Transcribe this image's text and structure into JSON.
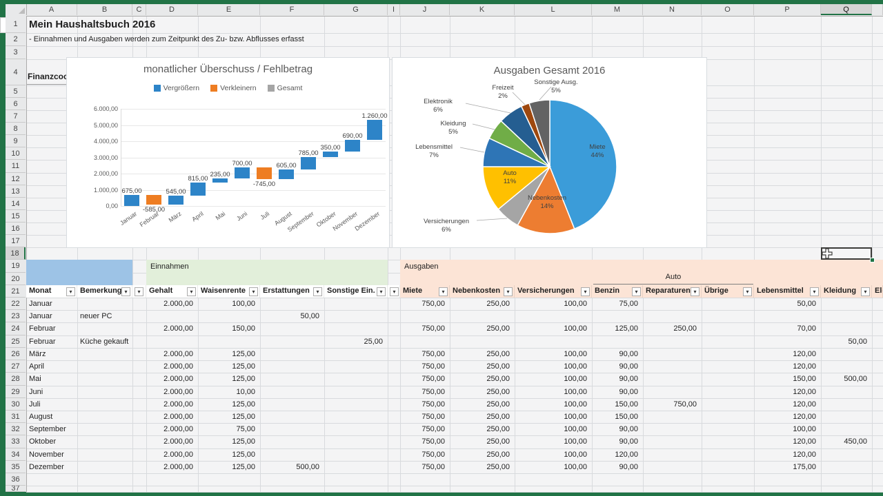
{
  "colors": {
    "frame": "#217346",
    "section_blue": "#9DC3E6",
    "section_green": "#E2EFDA",
    "section_peach": "#FCE4D6",
    "increase": "#2D84C8",
    "decrease": "#EE7D22",
    "total": "#A5A5A5"
  },
  "sheet": {
    "title": "Mein Haushaltsbuch 2016",
    "subtitle": "- Einnahmen und Ausgaben werden zum Zeitpunkt des Zu- bzw. Abflusses erfasst",
    "finanzcockpit": "Finanzcockpi",
    "column_letters": [
      "A",
      "B",
      "C",
      "D",
      "E",
      "F",
      "G",
      "I",
      "J",
      "K",
      "L",
      "M",
      "N",
      "O",
      "P",
      "Q"
    ],
    "selected_column": "Q",
    "selected_row": 18,
    "row_first": 1,
    "row_last": 37
  },
  "sections": {
    "einnahmen": "Einnahmen",
    "ausgaben": "Ausgaben",
    "auto_group": "Auto"
  },
  "table": {
    "headers": [
      "Monat",
      "Bemerkung",
      "Gehalt",
      "Waisenrente",
      "Erstattungen",
      "Sonstige Ein.",
      "Miete",
      "Nebenkosten",
      "Versicherungen",
      "Benzin",
      "Reparaturen",
      "Übrige",
      "Lebensmittel",
      "Kleidung"
    ],
    "partial_last_header": "Ele",
    "rows": [
      {
        "row": 22,
        "cells": [
          "Januar",
          "",
          "2.000,00",
          "100,00",
          "",
          "",
          "750,00",
          "250,00",
          "100,00",
          "75,00",
          "",
          "",
          "50,00",
          ""
        ]
      },
      {
        "row": 23,
        "cells": [
          "Januar",
          "neuer PC",
          "",
          "",
          "50,00",
          "",
          "",
          "",
          "",
          "",
          "",
          "",
          "",
          ""
        ]
      },
      {
        "row": 24,
        "cells": [
          "Februar",
          "",
          "2.000,00",
          "150,00",
          "",
          "",
          "750,00",
          "250,00",
          "100,00",
          "125,00",
          "250,00",
          "",
          "70,00",
          ""
        ]
      },
      {
        "row": 25,
        "cells": [
          "Februar",
          "Küche gekauft",
          "",
          "",
          "",
          "25,00",
          "",
          "",
          "",
          "",
          "",
          "",
          "",
          "50,00"
        ]
      },
      {
        "row": 26,
        "cells": [
          "März",
          "",
          "2.000,00",
          "125,00",
          "",
          "",
          "750,00",
          "250,00",
          "100,00",
          "90,00",
          "",
          "",
          "120,00",
          ""
        ]
      },
      {
        "row": 27,
        "cells": [
          "April",
          "",
          "2.000,00",
          "125,00",
          "",
          "",
          "750,00",
          "250,00",
          "100,00",
          "90,00",
          "",
          "",
          "120,00",
          ""
        ]
      },
      {
        "row": 28,
        "cells": [
          "Mai",
          "",
          "2.000,00",
          "125,00",
          "",
          "",
          "750,00",
          "250,00",
          "100,00",
          "90,00",
          "",
          "",
          "150,00",
          "500,00"
        ]
      },
      {
        "row": 29,
        "cells": [
          "Juni",
          "",
          "2.000,00",
          "10,00",
          "",
          "",
          "750,00",
          "250,00",
          "100,00",
          "90,00",
          "",
          "",
          "120,00",
          ""
        ]
      },
      {
        "row": 30,
        "cells": [
          "Juli",
          "",
          "2.000,00",
          "125,00",
          "",
          "",
          "750,00",
          "250,00",
          "100,00",
          "150,00",
          "750,00",
          "",
          "120,00",
          ""
        ]
      },
      {
        "row": 31,
        "cells": [
          "August",
          "",
          "2.000,00",
          "125,00",
          "",
          "",
          "750,00",
          "250,00",
          "100,00",
          "150,00",
          "",
          "",
          "120,00",
          ""
        ]
      },
      {
        "row": 32,
        "cells": [
          "September",
          "",
          "2.000,00",
          "75,00",
          "",
          "",
          "750,00",
          "250,00",
          "100,00",
          "90,00",
          "",
          "",
          "100,00",
          ""
        ]
      },
      {
        "row": 33,
        "cells": [
          "Oktober",
          "",
          "2.000,00",
          "125,00",
          "",
          "",
          "750,00",
          "250,00",
          "100,00",
          "90,00",
          "",
          "",
          "120,00",
          "450,00"
        ]
      },
      {
        "row": 34,
        "cells": [
          "November",
          "",
          "2.000,00",
          "125,00",
          "",
          "",
          "750,00",
          "250,00",
          "100,00",
          "120,00",
          "",
          "",
          "120,00",
          ""
        ]
      },
      {
        "row": 35,
        "cells": [
          "Dezember",
          "",
          "2.000,00",
          "125,00",
          "500,00",
          "",
          "750,00",
          "250,00",
          "100,00",
          "90,00",
          "",
          "",
          "175,00",
          ""
        ]
      }
    ]
  },
  "chart_data": [
    {
      "type": "bar",
      "subtype": "waterfall",
      "title": "monatlicher Überschuss / Fehlbetrag",
      "categories": [
        "Januar",
        "Februar",
        "März",
        "April",
        "Mai",
        "Juni",
        "Juli",
        "August",
        "September",
        "Oktober",
        "November",
        "Dezember"
      ],
      "values": [
        675,
        -585,
        545,
        815,
        235,
        700,
        -745,
        605,
        785,
        350,
        690,
        1260
      ],
      "labels": [
        "675,00",
        "-585,00",
        "545,00",
        "815,00",
        "235,00",
        "700,00",
        "-745,00",
        "605,00",
        "785,00",
        "350,00",
        "690,00",
        "1.260,00"
      ],
      "legend": [
        "Vergrößern",
        "Verkleinern",
        "Gesamt"
      ],
      "legend_colors": [
        "#2D84C8",
        "#EE7D22",
        "#A5A5A5"
      ],
      "xlabel": "",
      "ylabel": "",
      "ylim": [
        0,
        6000
      ],
      "ytick_labels": [
        "0,00",
        "1.000,00",
        "2.000,00",
        "3.000,00",
        "4.000,00",
        "5.000,00",
        "6.000,00"
      ],
      "grid": true,
      "legend_position": "top"
    },
    {
      "type": "pie",
      "title": "Ausgaben Gesamt 2016",
      "slices": [
        {
          "label": "Miete",
          "pct": 44,
          "color": "#3B9CD9"
        },
        {
          "label": "Nebenkosten",
          "pct": 14,
          "color": "#ED7D31"
        },
        {
          "label": "Versicherungen",
          "pct": 6,
          "color": "#A5A5A5"
        },
        {
          "label": "Auto",
          "pct": 11,
          "color": "#FFC000"
        },
        {
          "label": "Lebensmittel",
          "pct": 7,
          "color": "#2E75B6"
        },
        {
          "label": "Kleidung",
          "pct": 5,
          "color": "#70AD47"
        },
        {
          "label": "Elektronik",
          "pct": 6,
          "color": "#255E91"
        },
        {
          "label": "Freizeit",
          "pct": 2,
          "color": "#9E480E"
        },
        {
          "label": "Sonstige Ausg.",
          "pct": 5,
          "color": "#636363"
        }
      ]
    }
  ]
}
